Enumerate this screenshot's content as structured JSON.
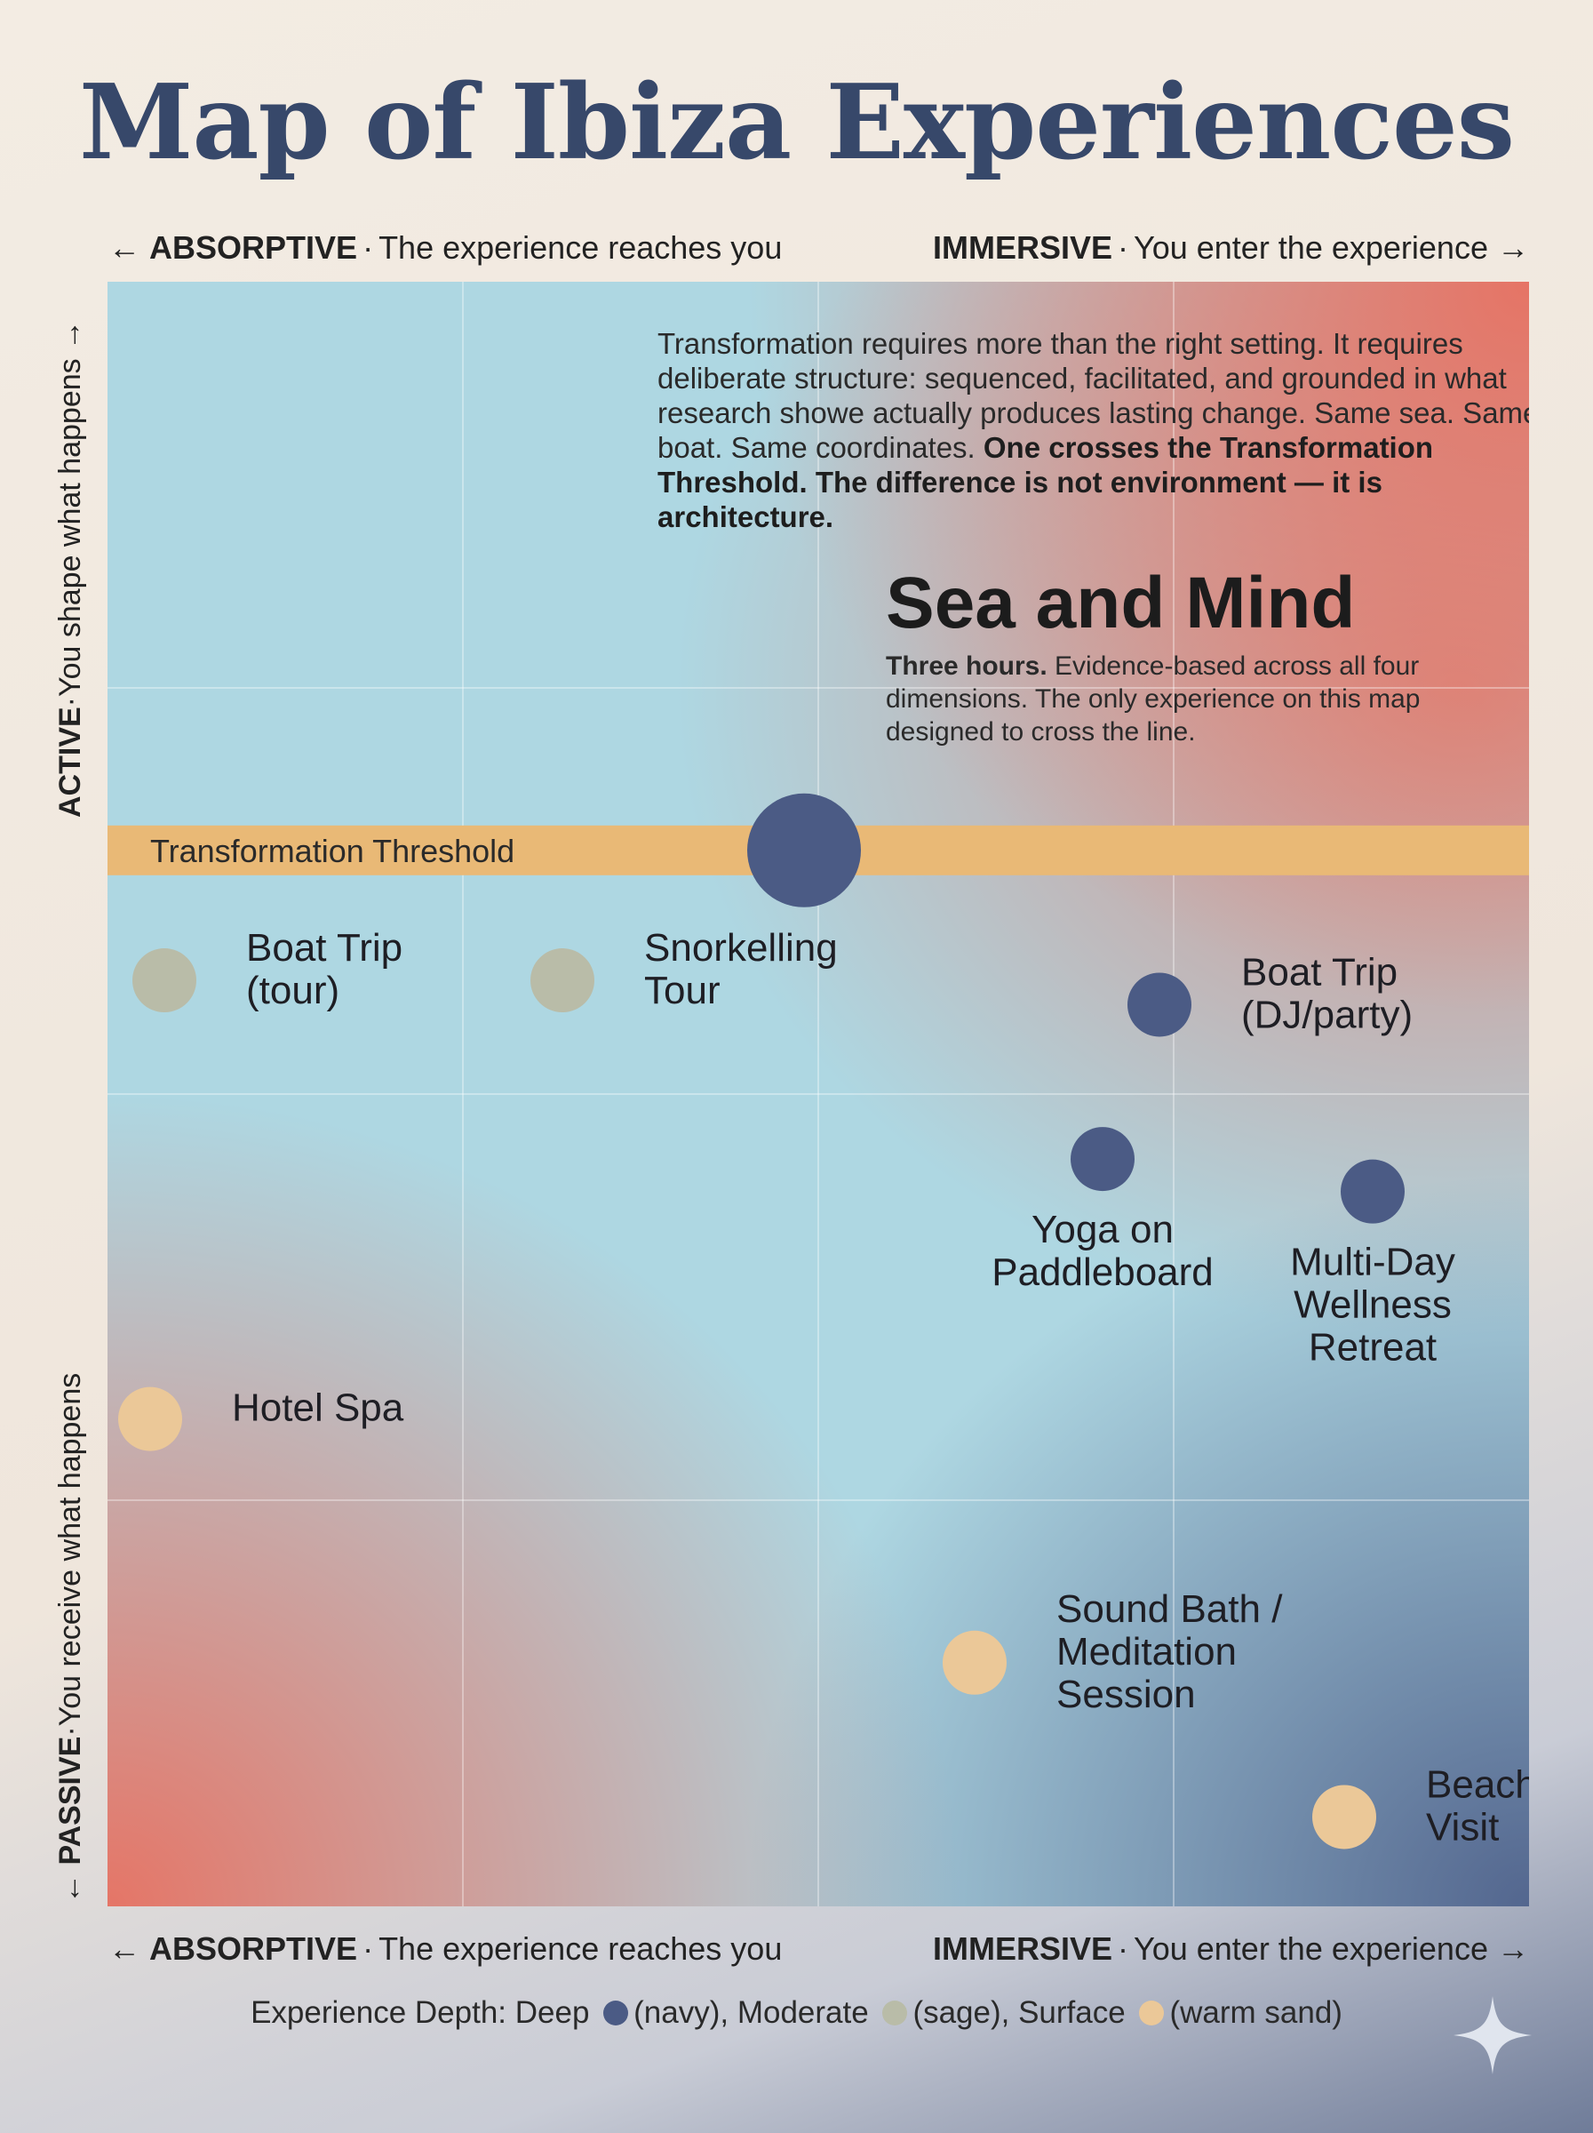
{
  "page": {
    "title": "Map of Ibiza Experiences"
  },
  "axes": {
    "top_left": {
      "bold": "ABSORPTIVE",
      "text": "The experience reaches you"
    },
    "top_right": {
      "bold": "IMMERSIVE",
      "text": "You enter the experience"
    },
    "bottom_left": {
      "bold": "ABSORPTIVE",
      "text": "The experience reaches you"
    },
    "bottom_right": {
      "bold": "IMMERSIVE",
      "text": "You enter the experience"
    },
    "vertical_top": {
      "bold": "ACTIVE",
      "text": "You shape what happens"
    },
    "vertical_bottom": {
      "bold": "PASSIVE",
      "text": "You receive what happens"
    },
    "arrow_left": "←",
    "arrow_right": "→",
    "separator": "·"
  },
  "intro": {
    "text": "Transformation requires more than the right setting. It requires deliberate structure: sequenced, facilitated, and grounded in what research showe actually produces lasting change. Same sea. Same boat. Same coordinates.",
    "bold": "One crosses the Transformation Threshold. The difference is not environment — it is architecture."
  },
  "feature": {
    "title": "Sea and Mind",
    "bold": "Three hours.",
    "text": "Evidence-based across all four dimensions. The only experience on this map designed to cross the line."
  },
  "legend": {
    "prefix": "Experience Depth: Deep",
    "deep": "(navy), Moderate",
    "moderate": "(sage), Surface",
    "surface": "(warm sand)"
  },
  "colors": {
    "deep": "#4b5b85",
    "moderate": "#b9bca8",
    "surface": "#ebc898",
    "threshold": "#e9b976"
  },
  "chart_data": {
    "type": "scatter",
    "title": "Map of Ibiza Experiences",
    "xlabel": "ABSORPTIVE ← → IMMERSIVE",
    "ylabel": "PASSIVE ← → ACTIVE",
    "xlim": [
      0,
      100
    ],
    "ylim": [
      0,
      100
    ],
    "grid": true,
    "legend": "bottom",
    "threshold": {
      "label": "Transformation Threshold",
      "y": 65
    },
    "series": [
      {
        "name": "Sea and Mind",
        "label": [
          "Sea and Mind"
        ],
        "x": 49,
        "y": 65,
        "depth": "deep",
        "size": "large",
        "anchor": "none"
      },
      {
        "name": "Boat Trip (tour)",
        "label": [
          "Boat Trip",
          "(tour)"
        ],
        "x": 4,
        "y": 57,
        "depth": "moderate",
        "size": "medium",
        "anchor": "right"
      },
      {
        "name": "Snorkelling Tour",
        "label": [
          "Snorkelling",
          "Tour"
        ],
        "x": 32,
        "y": 57,
        "depth": "moderate",
        "size": "medium",
        "anchor": "right"
      },
      {
        "name": "Boat Trip (DJ/party)",
        "label": [
          "Boat Trip",
          "(DJ/party)"
        ],
        "x": 74,
        "y": 55.5,
        "depth": "deep",
        "size": "medium",
        "anchor": "right"
      },
      {
        "name": "Yoga on Paddleboard",
        "label": [
          "Yoga on",
          "Paddleboard"
        ],
        "x": 70,
        "y": 46,
        "depth": "deep",
        "size": "medium",
        "anchor": "below"
      },
      {
        "name": "Multi-Day Wellness Retreat",
        "label": [
          "Multi-Day",
          "Wellness",
          "Retreat"
        ],
        "x": 89,
        "y": 44,
        "depth": "deep",
        "size": "medium",
        "anchor": "below"
      },
      {
        "name": "Hotel Spa",
        "label": [
          "Hotel Spa"
        ],
        "x": 3,
        "y": 30,
        "depth": "surface",
        "size": "medium",
        "anchor": "right"
      },
      {
        "name": "Sound Bath / Meditation Session",
        "label": [
          "Sound Bath /",
          "Meditation",
          "Session"
        ],
        "x": 61,
        "y": 15,
        "depth": "surface",
        "size": "medium",
        "anchor": "right"
      },
      {
        "name": "Beach Visit",
        "label": [
          "Beach",
          "Visit"
        ],
        "x": 87,
        "y": 5.5,
        "depth": "surface",
        "size": "medium",
        "anchor": "right"
      }
    ]
  }
}
